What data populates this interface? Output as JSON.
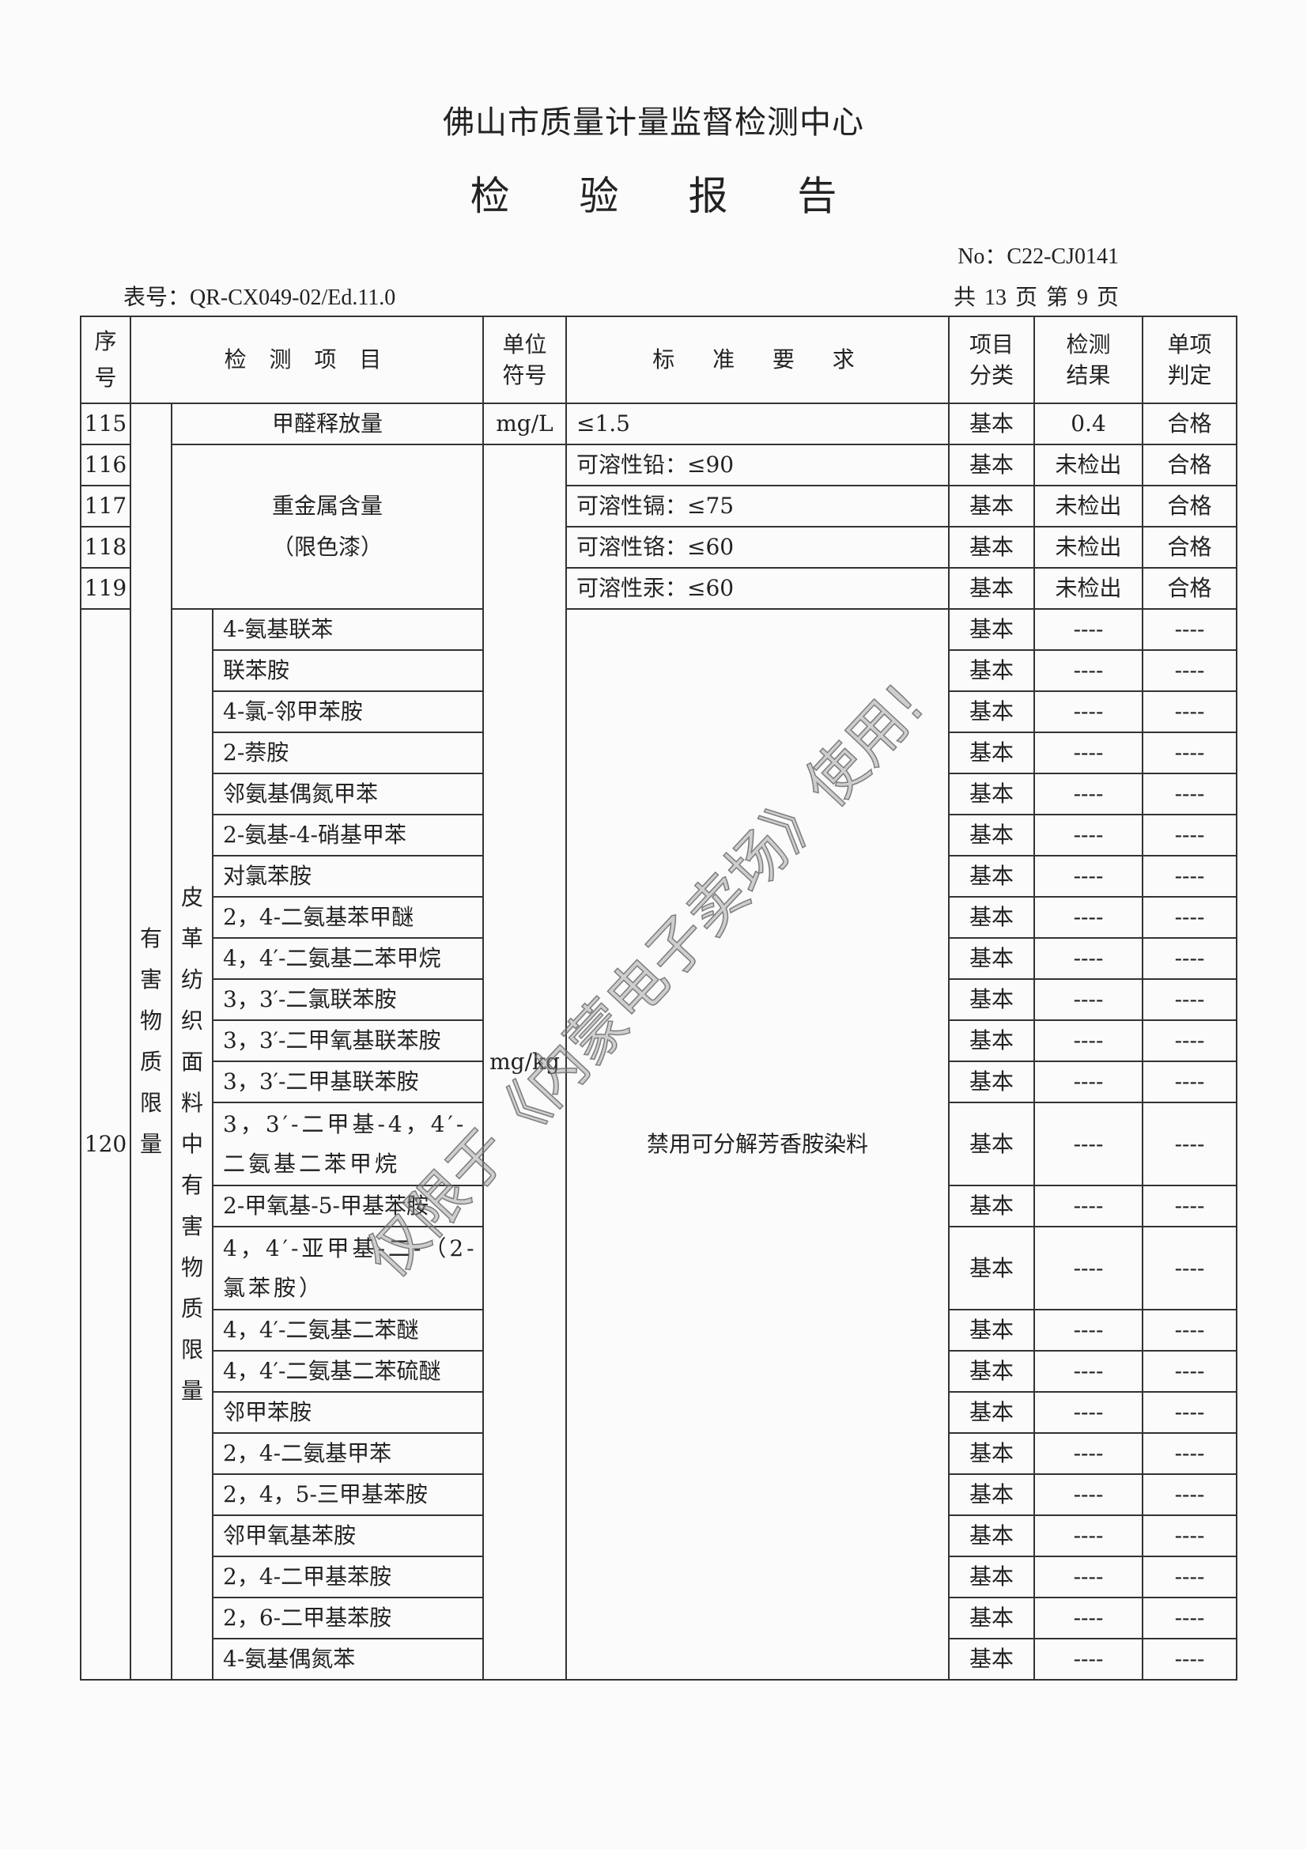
{
  "header": {
    "organization": "佛山市质量计量监督检测中心",
    "title": "检  验  报  告",
    "report_no": "No：C22-CJ0141",
    "form_no": "表号：QR-CX049-02/Ed.11.0",
    "pages": "共 13 页  第 9 页"
  },
  "table": {
    "columns": {
      "seq": "序号",
      "item": "检 测 项 目",
      "unit": "单位符号",
      "standard": "标  准  要  求",
      "classification": "项目分类",
      "result": "检测结果",
      "verdict": "单项判定"
    },
    "category": "有害物质限量",
    "rows_115_119": [
      {
        "seq": "115",
        "item": "甲醛释放量",
        "unit": "mg/L",
        "standard": "≤1.5",
        "classification": "基本",
        "result": "0.4",
        "verdict": "合格"
      },
      {
        "seq": "116",
        "standard": "可溶性铅：≤90",
        "classification": "基本",
        "result": "未检出",
        "verdict": "合格"
      },
      {
        "seq": "117",
        "standard": "可溶性镉：≤75",
        "classification": "基本",
        "result": "未检出",
        "verdict": "合格"
      },
      {
        "seq": "118",
        "standard": "可溶性铬：≤60",
        "classification": "基本",
        "result": "未检出",
        "verdict": "合格"
      },
      {
        "seq": "119",
        "standard": "可溶性汞：≤60",
        "classification": "基本",
        "result": "未检出",
        "verdict": "合格"
      }
    ],
    "heavy_metal_item": "重金属含量",
    "heavy_metal_note": "（限色漆）",
    "heavy_metal_unit": "mg/kg",
    "row_120": {
      "seq": "120",
      "subcategory": "皮革纺织面料中有害物质限量",
      "standard": "禁用可分解芳香胺染料",
      "items": [
        {
          "name": "4-氨基联苯",
          "classification": "基本",
          "result": "----",
          "verdict": "----"
        },
        {
          "name": "联苯胺",
          "classification": "基本",
          "result": "----",
          "verdict": "----"
        },
        {
          "name": "4-氯-邻甲苯胺",
          "classification": "基本",
          "result": "----",
          "verdict": "----"
        },
        {
          "name": "2-萘胺",
          "classification": "基本",
          "result": "----",
          "verdict": "----"
        },
        {
          "name": "邻氨基偶氮甲苯",
          "classification": "基本",
          "result": "----",
          "verdict": "----"
        },
        {
          "name": "2-氨基-4-硝基甲苯",
          "classification": "基本",
          "result": "----",
          "verdict": "----"
        },
        {
          "name": "对氯苯胺",
          "classification": "基本",
          "result": "----",
          "verdict": "----"
        },
        {
          "name": "2，4-二氨基苯甲醚",
          "classification": "基本",
          "result": "----",
          "verdict": "----"
        },
        {
          "name": "4，4′-二氨基二苯甲烷",
          "classification": "基本",
          "result": "----",
          "verdict": "----"
        },
        {
          "name": "3，3′-二氯联苯胺",
          "classification": "基本",
          "result": "----",
          "verdict": "----"
        },
        {
          "name": "3，3′-二甲氧基联苯胺",
          "classification": "基本",
          "result": "----",
          "verdict": "----"
        },
        {
          "name": "3，3′-二甲基联苯胺",
          "classification": "基本",
          "result": "----",
          "verdict": "----"
        },
        {
          "name": "3，3′-二甲基-4，4′-二氨基二苯甲烷",
          "classification": "基本",
          "result": "----",
          "verdict": "----",
          "double": true
        },
        {
          "name": "2-甲氧基-5-甲基苯胺",
          "classification": "基本",
          "result": "----",
          "verdict": "----"
        },
        {
          "name": "4，4′-亚甲基-二-（2-氯苯胺）",
          "classification": "基本",
          "result": "----",
          "verdict": "----",
          "double": true
        },
        {
          "name": "4，4′-二氨基二苯醚",
          "classification": "基本",
          "result": "----",
          "verdict": "----"
        },
        {
          "name": "4，4′-二氨基二苯硫醚",
          "classification": "基本",
          "result": "----",
          "verdict": "----"
        },
        {
          "name": "邻甲苯胺",
          "classification": "基本",
          "result": "----",
          "verdict": "----"
        },
        {
          "name": "2，4-二氨基甲苯",
          "classification": "基本",
          "result": "----",
          "verdict": "----"
        },
        {
          "name": "2，4，5-三甲基苯胺",
          "classification": "基本",
          "result": "----",
          "verdict": "----"
        },
        {
          "name": "邻甲氧基苯胺",
          "classification": "基本",
          "result": "----",
          "verdict": "----"
        },
        {
          "name": "2，4-二甲基苯胺",
          "classification": "基本",
          "result": "----",
          "verdict": "----"
        },
        {
          "name": "2，6-二甲基苯胺",
          "classification": "基本",
          "result": "----",
          "verdict": "----"
        },
        {
          "name": "4-氨基偶氮苯",
          "classification": "基本",
          "result": "----",
          "verdict": "----"
        }
      ]
    }
  },
  "watermark": "仅限于《内蒙电子卖场》使用!"
}
